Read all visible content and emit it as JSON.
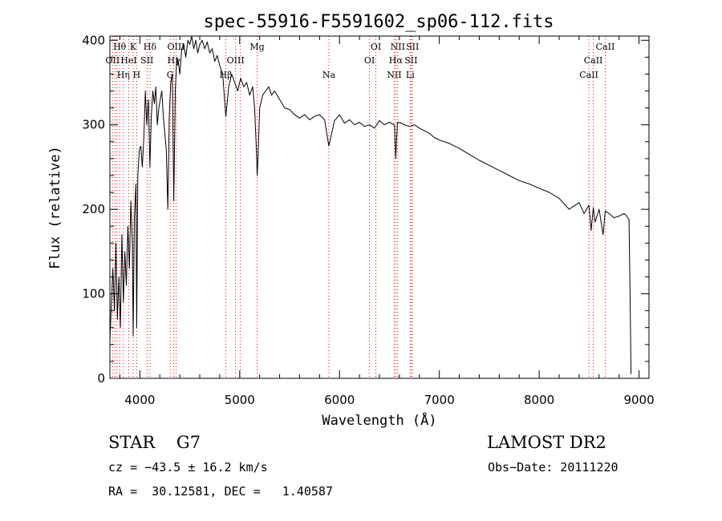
{
  "chart_data": {
    "type": "line",
    "title": "spec-55916-F5591602_sp06-112.fits",
    "xlabel": "Wavelength (Å)",
    "ylabel": "Flux (relative)",
    "xlim": [
      3700,
      9100
    ],
    "ylim": [
      0,
      405
    ],
    "xticks": [
      4000,
      5000,
      6000,
      7000,
      8000,
      9000
    ],
    "yticks": [
      0,
      100,
      200,
      300,
      400
    ],
    "grid": false,
    "line_color": "#000000",
    "marker_color": "#ff0000",
    "series": [
      {
        "x": [
          3700,
          3715,
          3730,
          3745,
          3760,
          3775,
          3790,
          3805,
          3820,
          3835,
          3850,
          3865,
          3880,
          3895,
          3910,
          3925,
          3933,
          3945,
          3960,
          3968,
          3980,
          3995,
          4010,
          4025,
          4040,
          4055,
          4070,
          4085,
          4101,
          4115,
          4130,
          4145,
          4160,
          4175,
          4190,
          4205,
          4220,
          4235,
          4250,
          4265,
          4280,
          4295,
          4310,
          4325,
          4340,
          4355,
          4370,
          4385,
          4400,
          4420,
          4440,
          4460,
          4480,
          4500,
          4520,
          4540,
          4560,
          4580,
          4600,
          4625,
          4650,
          4675,
          4700,
          4725,
          4750,
          4775,
          4800,
          4830,
          4861,
          4890,
          4920,
          4950,
          4980,
          5010,
          5040,
          5070,
          5100,
          5130,
          5150,
          5167,
          5175,
          5183,
          5200,
          5230,
          5260,
          5290,
          5320,
          5350,
          5400,
          5450,
          5500,
          5550,
          5600,
          5650,
          5700,
          5750,
          5800,
          5850,
          5893,
          5950,
          6000,
          6050,
          6100,
          6150,
          6200,
          6250,
          6300,
          6350,
          6400,
          6450,
          6500,
          6550,
          6563,
          6580,
          6620,
          6650,
          6700,
          6750,
          6800,
          6850,
          6900,
          6950,
          7000,
          7100,
          7200,
          7300,
          7400,
          7500,
          7600,
          7700,
          7800,
          7900,
          8000,
          8100,
          8200,
          8300,
          8400,
          8450,
          8498,
          8520,
          8542,
          8560,
          8600,
          8640,
          8662,
          8700,
          8750,
          8800,
          8850,
          8870,
          8900,
          8910,
          8920
        ],
        "y": [
          45,
          90,
          130,
          80,
          160,
          70,
          120,
          60,
          170,
          90,
          150,
          110,
          180,
          130,
          210,
          160,
          50,
          190,
          230,
          60,
          240,
          270,
          275,
          250,
          285,
          340,
          300,
          330,
          250,
          310,
          340,
          325,
          345,
          300,
          320,
          330,
          340,
          310,
          290,
          270,
          200,
          310,
          350,
          360,
          210,
          340,
          380,
          375,
          360,
          390,
          395,
          380,
          400,
          395,
          405,
          390,
          400,
          385,
          395,
          400,
          390,
          398,
          385,
          390,
          375,
          382,
          370,
          360,
          310,
          345,
          360,
          350,
          340,
          355,
          345,
          350,
          335,
          345,
          320,
          270,
          240,
          260,
          320,
          335,
          340,
          345,
          335,
          340,
          330,
          320,
          318,
          312,
          308,
          312,
          306,
          310,
          312,
          306,
          275,
          305,
          312,
          302,
          306,
          300,
          303,
          298,
          300,
          296,
          305,
          300,
          303,
          300,
          260,
          303,
          302,
          300,
          298,
          300,
          296,
          293,
          290,
          285,
          282,
          278,
          272,
          265,
          258,
          252,
          246,
          240,
          234,
          230,
          225,
          220,
          213,
          200,
          208,
          195,
          205,
          175,
          202,
          185,
          200,
          170,
          198,
          195,
          190,
          192,
          195,
          193,
          188,
          100,
          5
        ]
      }
    ],
    "line_markers": [
      {
        "x": 3727,
        "label": "OII",
        "row": 1
      },
      {
        "x": 3750,
        "label": "",
        "row": 0
      },
      {
        "x": 3770,
        "label": "",
        "row": 0
      },
      {
        "x": 3798,
        "label": "Hθ",
        "row": 0
      },
      {
        "x": 3835,
        "label": "Hη",
        "row": 2
      },
      {
        "x": 3889,
        "label": "HeI",
        "row": 1
      },
      {
        "x": 3933,
        "label": "K",
        "row": 0
      },
      {
        "x": 3968,
        "label": "H",
        "row": 2
      },
      {
        "x": 4072,
        "label": "SII",
        "row": 1
      },
      {
        "x": 4101,
        "label": "Hδ",
        "row": 0
      },
      {
        "x": 4304,
        "label": "G",
        "row": 2
      },
      {
        "x": 4340,
        "label": "Hγ",
        "row": 1
      },
      {
        "x": 4363,
        "label": "OIII",
        "row": 0
      },
      {
        "x": 4861,
        "label": "Hβ",
        "row": 2
      },
      {
        "x": 4959,
        "label": "OIII",
        "row": 1
      },
      {
        "x": 5007,
        "label": "",
        "row": 1
      },
      {
        "x": 5175,
        "label": "Mg",
        "row": 0
      },
      {
        "x": 5893,
        "label": "Na",
        "row": 2
      },
      {
        "x": 6300,
        "label": "OI",
        "row": 1
      },
      {
        "x": 6364,
        "label": "OI",
        "row": 0
      },
      {
        "x": 6548,
        "label": "NII",
        "row": 2
      },
      {
        "x": 6563,
        "label": "Hα",
        "row": 1
      },
      {
        "x": 6583,
        "label": "NII",
        "row": 0
      },
      {
        "x": 6708,
        "label": "Li",
        "row": 2
      },
      {
        "x": 6716,
        "label": "SII",
        "row": 1
      },
      {
        "x": 6731,
        "label": "SII",
        "row": 0
      },
      {
        "x": 8498,
        "label": "CaII",
        "row": 2
      },
      {
        "x": 8542,
        "label": "CaII",
        "row": 1
      },
      {
        "x": 8662,
        "label": "CaII",
        "row": 0
      }
    ]
  },
  "info": {
    "object": "STAR    G7",
    "survey": "LAMOST DR2",
    "cz": "cz = −43.5 ± 16.2 km/s",
    "obs_date": "Obs−Date: 20111220",
    "coords": "RA =  30.12581, DEC =   1.40587"
  }
}
